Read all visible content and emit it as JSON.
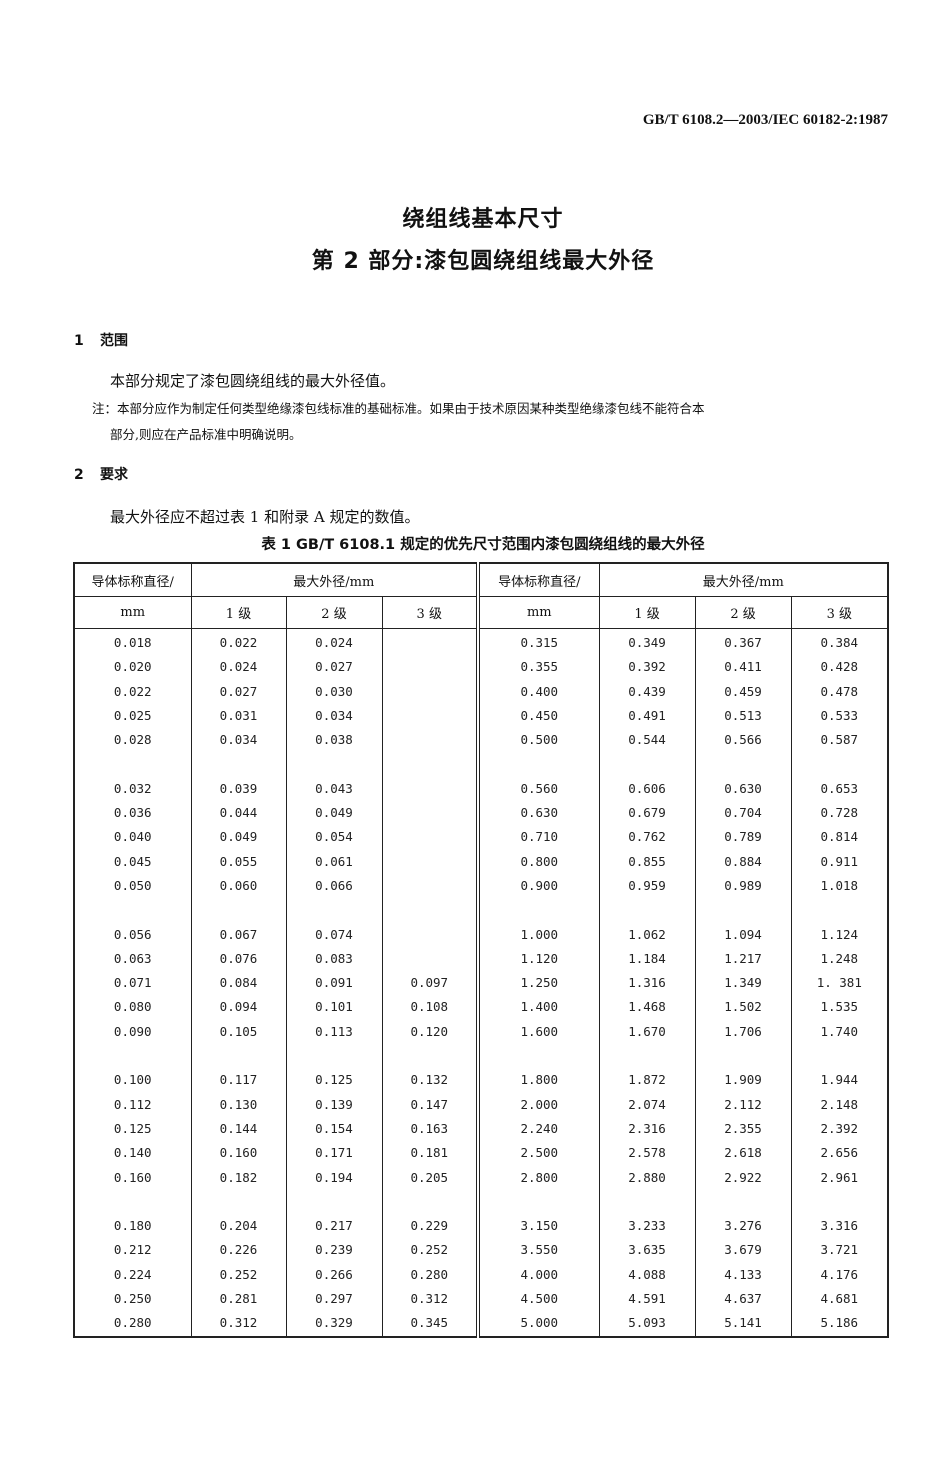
{
  "header": {
    "standard_code": "GB/T 6108.2—2003/IEC 60182-2:1987"
  },
  "title": {
    "line1": "绕组线基本尺寸",
    "line2": "第 2 部分:漆包圆绕组线最大外径"
  },
  "section1": {
    "number": "1",
    "heading": "范围",
    "text": "本部分规定了漆包圆绕组线的最大外径值。",
    "note_line1": "注：本部分应作为制定任何类型绝缘漆包线标准的基础标准。如果由于技术原因某种类型绝缘漆包线不能符合本",
    "note_line2": "部分,则应在产品标准中明确说明。"
  },
  "section2": {
    "number": "2",
    "heading": "要求",
    "text": "最大外径应不超过表 1 和附录 A 规定的数值。"
  },
  "table": {
    "caption": "表 1   GB/T 6108.1 规定的优先尺寸范围内漆包圆绕组线的最大外径",
    "header": {
      "diameter_label": "导体标称直径/",
      "diameter_unit": "mm",
      "max_od_label": "最大外径/mm",
      "grade1": "1 级",
      "grade2": "2 级",
      "grade3": "3 级"
    },
    "groups": [
      [
        [
          "0.018",
          "0.022",
          "0.024",
          "",
          "0.315",
          "0.349",
          "0.367",
          "0.384"
        ],
        [
          "0.020",
          "0.024",
          "0.027",
          "",
          "0.355",
          "0.392",
          "0.411",
          "0.428"
        ],
        [
          "0.022",
          "0.027",
          "0.030",
          "",
          "0.400",
          "0.439",
          "0.459",
          "0.478"
        ],
        [
          "0.025",
          "0.031",
          "0.034",
          "",
          "0.450",
          "0.491",
          "0.513",
          "0.533"
        ],
        [
          "0.028",
          "0.034",
          "0.038",
          "",
          "0.500",
          "0.544",
          "0.566",
          "0.587"
        ]
      ],
      [
        [
          "0.032",
          "0.039",
          "0.043",
          "",
          "0.560",
          "0.606",
          "0.630",
          "0.653"
        ],
        [
          "0.036",
          "0.044",
          "0.049",
          "",
          "0.630",
          "0.679",
          "0.704",
          "0.728"
        ],
        [
          "0.040",
          "0.049",
          "0.054",
          "",
          "0.710",
          "0.762",
          "0.789",
          "0.814"
        ],
        [
          "0.045",
          "0.055",
          "0.061",
          "",
          "0.800",
          "0.855",
          "0.884",
          "0.911"
        ],
        [
          "0.050",
          "0.060",
          "0.066",
          "",
          "0.900",
          "0.959",
          "0.989",
          "1.018"
        ]
      ],
      [
        [
          "0.056",
          "0.067",
          "0.074",
          "",
          "1.000",
          "1.062",
          "1.094",
          "1.124"
        ],
        [
          "0.063",
          "0.076",
          "0.083",
          "",
          "1.120",
          "1.184",
          "1.217",
          "1.248"
        ],
        [
          "0.071",
          "0.084",
          "0.091",
          "0.097",
          "1.250",
          "1.316",
          "1.349",
          "1. 381"
        ],
        [
          "0.080",
          "0.094",
          "0.101",
          "0.108",
          "1.400",
          "1.468",
          "1.502",
          "1.535"
        ],
        [
          "0.090",
          "0.105",
          "0.113",
          "0.120",
          "1.600",
          "1.670",
          "1.706",
          "1.740"
        ]
      ],
      [
        [
          "0.100",
          "0.117",
          "0.125",
          "0.132",
          "1.800",
          "1.872",
          "1.909",
          "1.944"
        ],
        [
          "0.112",
          "0.130",
          "0.139",
          "0.147",
          "2.000",
          "2.074",
          "2.112",
          "2.148"
        ],
        [
          "0.125",
          "0.144",
          "0.154",
          "0.163",
          "2.240",
          "2.316",
          "2.355",
          "2.392"
        ],
        [
          "0.140",
          "0.160",
          "0.171",
          "0.181",
          "2.500",
          "2.578",
          "2.618",
          "2.656"
        ],
        [
          "0.160",
          "0.182",
          "0.194",
          "0.205",
          "2.800",
          "2.880",
          "2.922",
          "2.961"
        ]
      ],
      [
        [
          "0.180",
          "0.204",
          "0.217",
          "0.229",
          "3.150",
          "3.233",
          "3.276",
          "3.316"
        ],
        [
          "0.212",
          "0.226",
          "0.239",
          "0.252",
          "3.550",
          "3.635",
          "3.679",
          "3.721"
        ],
        [
          "0.224",
          "0.252",
          "0.266",
          "0.280",
          "4.000",
          "4.088",
          "4.133",
          "4.176"
        ],
        [
          "0.250",
          "0.281",
          "0.297",
          "0.312",
          "4.500",
          "4.591",
          "4.637",
          "4.681"
        ],
        [
          "0.280",
          "0.312",
          "0.329",
          "0.345",
          "5.000",
          "5.093",
          "5.141",
          "5.186"
        ]
      ]
    ]
  }
}
